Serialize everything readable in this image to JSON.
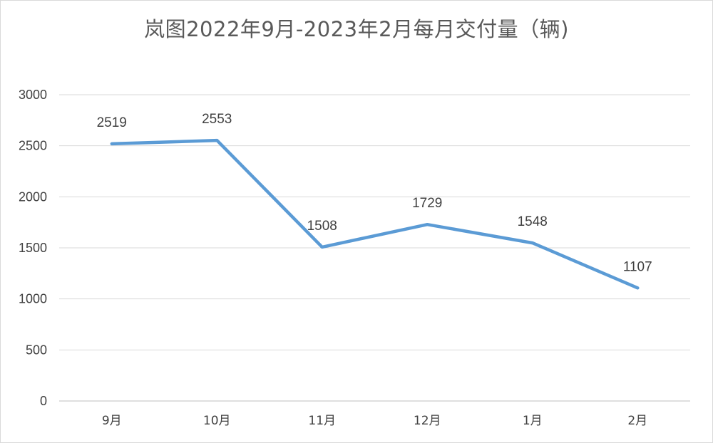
{
  "chart_data": {
    "type": "line",
    "title": "岚图2022年9月-2023年2月每月交付量（辆)",
    "xlabel": "",
    "ylabel": "",
    "categories": [
      "9月",
      "10月",
      "11月",
      "12月",
      "1月",
      "2月"
    ],
    "series": [
      {
        "values": [
          2519,
          2553,
          1508,
          1729,
          1548,
          1107
        ],
        "color": "#5b9bd5"
      }
    ],
    "ylim": [
      0,
      3000
    ],
    "yticks": [
      0,
      500,
      1000,
      1500,
      2000,
      2500,
      3000
    ],
    "grid": true,
    "legend": "none",
    "data_labels": true
  }
}
